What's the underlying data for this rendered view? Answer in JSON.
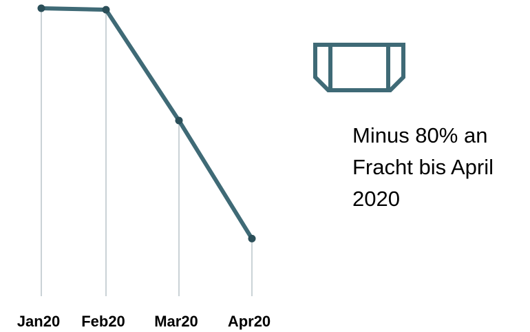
{
  "chart_data": {
    "type": "line",
    "categories": [
      "Jan20",
      "Feb20",
      "Mar20",
      "Apr20"
    ],
    "series": [
      {
        "values": [
          100,
          99.5,
          61,
          20
        ]
      }
    ],
    "title": "",
    "xlabel": "",
    "ylabel": "",
    "ylim": [
      0,
      100
    ],
    "grid": false,
    "colors": {
      "line": "#3f6a76",
      "marker": "#2b4f59",
      "drop_line": "#b8c4c8"
    }
  },
  "annotation": {
    "icon": "cargo-container-icon",
    "lines": [
      "Minus 80% an",
      "Fracht bis April",
      "2020"
    ]
  }
}
